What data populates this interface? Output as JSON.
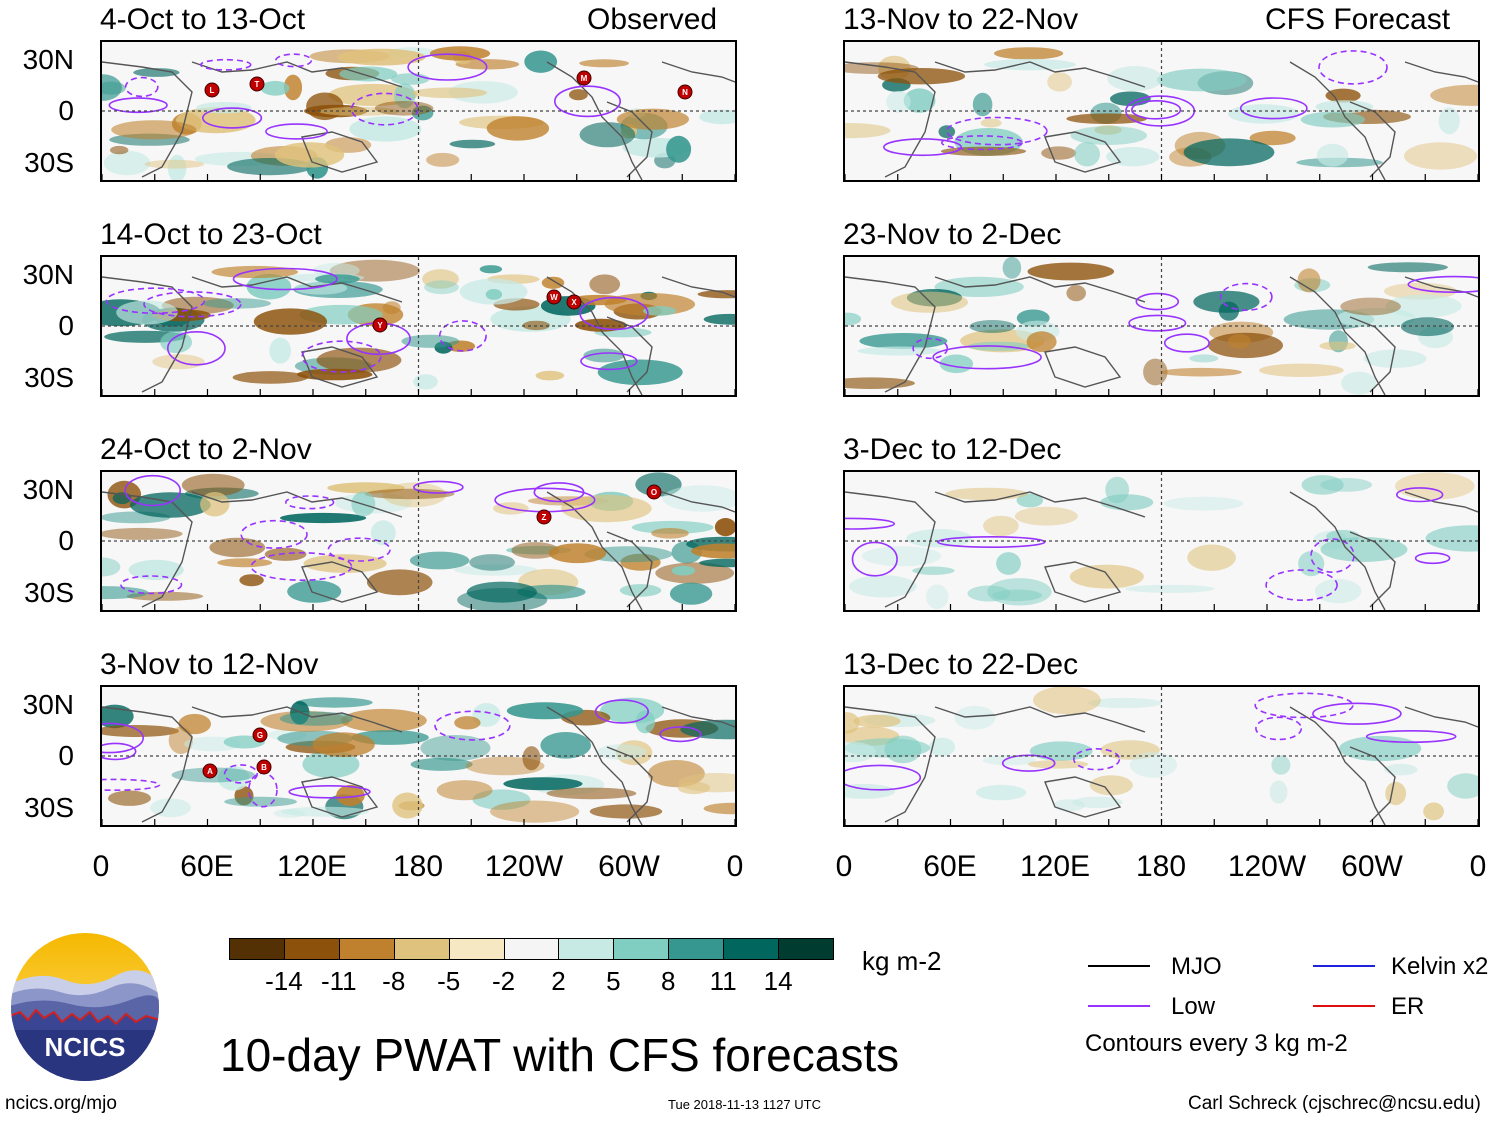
{
  "headers": {
    "left_label": "Observed",
    "right_label": "CFS Forecast"
  },
  "panels_left": [
    {
      "title": "4-Oct to 13-Oct"
    },
    {
      "title": "14-Oct to 23-Oct"
    },
    {
      "title": "24-Oct to 2-Nov"
    },
    {
      "title": "3-Nov to 12-Nov"
    }
  ],
  "panels_right": [
    {
      "title": "13-Nov to 22-Nov"
    },
    {
      "title": "23-Nov to 2-Dec"
    },
    {
      "title": "3-Dec to 12-Dec"
    },
    {
      "title": "13-Dec to 22-Dec"
    }
  ],
  "lat_labels": [
    "30N",
    "0",
    "30S"
  ],
  "lon_labels": [
    "0",
    "60E",
    "120E",
    "180",
    "120W",
    "60W",
    "0"
  ],
  "storms": {
    "p0": [
      "L",
      "T",
      "M",
      "N"
    ],
    "p1": [
      "Y",
      "W",
      "X"
    ],
    "p2": [
      "Z",
      "O"
    ],
    "p3": [
      "G",
      "A",
      "B"
    ]
  },
  "colorbar": {
    "labels": [
      "-14",
      "-11",
      "-8",
      "-5",
      "-2",
      "2",
      "5",
      "8",
      "11",
      "14"
    ],
    "colors": [
      "#543005",
      "#8c510a",
      "#bf812d",
      "#dfc27d",
      "#f6e8c3",
      "#f5f5f5",
      "#c7eae5",
      "#80cdc1",
      "#35978f",
      "#01665e",
      "#003c30"
    ],
    "units": "kg m-2"
  },
  "legend": {
    "items": [
      {
        "label": "MJO",
        "color": "#000000"
      },
      {
        "label": "Kelvin x2",
        "color": "#2020e0"
      },
      {
        "label": "Low",
        "color": "#9933ff"
      },
      {
        "label": "ER",
        "color": "#e01010"
      }
    ],
    "note": "Contours every 3 kg m-2"
  },
  "title": "10-day PWAT with CFS forecasts",
  "logo_text": "NCICS",
  "footer": {
    "url": "ncics.org/mjo",
    "timestamp": "Tue 2018-11-13 1127 UTC",
    "credit": "Carl Schreck (cjschrec@ncsu.edu)"
  }
}
